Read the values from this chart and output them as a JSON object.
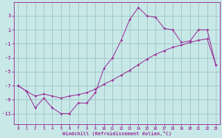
{
  "xlabel": "Windchill (Refroidissement éolien,°C)",
  "bg_color": "#c8e8e8",
  "grid_color": "#a0c8c8",
  "line_color": "#993399",
  "x": [
    0,
    1,
    2,
    3,
    4,
    5,
    6,
    7,
    8,
    9,
    10,
    11,
    12,
    13,
    14,
    15,
    16,
    17,
    18,
    19,
    20,
    21,
    22,
    23
  ],
  "y_wiggly": [
    -7.0,
    -7.8,
    -10.2,
    -8.8,
    -10.2,
    -11.0,
    -11.0,
    -9.5,
    -9.5,
    -8.0,
    -4.5,
    -3.0,
    -0.5,
    2.5,
    4.2,
    3.0,
    2.8,
    1.2,
    1.0,
    -0.8,
    -0.6,
    1.0,
    1.0,
    -4.0
  ],
  "y_trend": [
    -7.0,
    -7.8,
    -8.5,
    -8.2,
    -8.5,
    -8.8,
    -8.5,
    -8.3,
    -8.0,
    -7.5,
    -6.8,
    -6.2,
    -5.5,
    -4.8,
    -4.0,
    -3.2,
    -2.5,
    -2.0,
    -1.5,
    -1.2,
    -0.8,
    -0.5,
    -0.3,
    -4.0
  ],
  "ylim": [
    -12.5,
    5.0
  ],
  "xlim": [
    -0.5,
    23.5
  ],
  "yticks": [
    3,
    1,
    -1,
    -3,
    -5,
    -7,
    -9,
    -11
  ],
  "xticks": [
    0,
    1,
    2,
    3,
    4,
    5,
    6,
    7,
    8,
    9,
    10,
    11,
    12,
    13,
    14,
    15,
    16,
    17,
    18,
    19,
    20,
    21,
    22,
    23
  ]
}
